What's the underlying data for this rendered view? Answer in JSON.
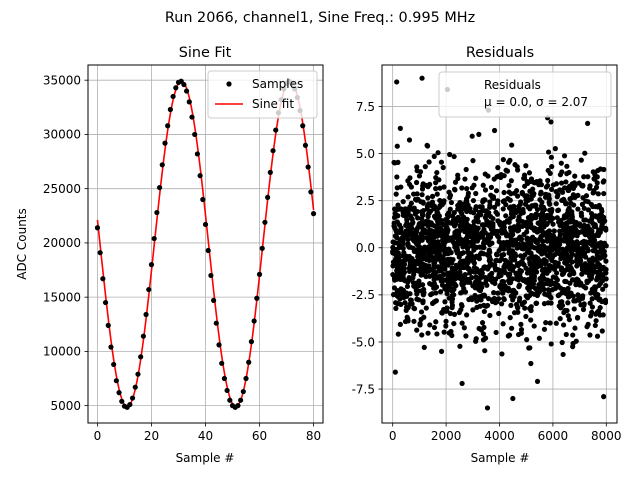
{
  "figure": {
    "suptitle": "Run 2066, channel1, Sine Freq.: 0.995 MHz"
  },
  "chart_data": [
    {
      "type": "scatter+line",
      "title": "Sine Fit",
      "xlabel": "Sample #",
      "ylabel": "ADC Counts",
      "xlim": [
        -3.5,
        83.5
      ],
      "ylim": [
        3400,
        36400
      ],
      "xticks": [
        0,
        20,
        40,
        60,
        80
      ],
      "yticks": [
        5000,
        10000,
        15000,
        20000,
        25000,
        30000,
        35000
      ],
      "grid": true,
      "legend_position": "top-right",
      "legend": [
        "Samples",
        "Sine fit"
      ],
      "fit_model": {
        "amplitude": 15000,
        "offset": 19900,
        "period": 40.2,
        "peak_x": 31.1
      },
      "series": [
        {
          "name": "Samples",
          "kind": "scatter",
          "color": "#000000",
          "x": [
            0,
            1,
            2,
            3,
            4,
            5,
            6,
            7,
            8,
            9,
            10,
            11,
            12,
            13,
            14,
            15,
            16,
            17,
            18,
            19,
            20,
            21,
            22,
            23,
            24,
            25,
            26,
            27,
            28,
            29,
            30,
            31,
            32,
            33,
            34,
            35,
            36,
            37,
            38,
            39,
            40,
            41,
            42,
            43,
            44,
            45,
            46,
            47,
            48,
            49,
            50,
            51,
            52,
            53,
            54,
            55,
            56,
            57,
            58,
            59,
            60,
            61,
            62,
            63,
            64,
            65,
            66,
            67,
            68,
            69,
            70,
            71,
            72,
            73,
            74,
            75,
            76,
            77,
            78,
            79,
            80
          ],
          "y": [
            21400,
            19100,
            16700,
            14500,
            12400,
            10400,
            8800,
            7300,
            6200,
            5400,
            4950,
            4850,
            5100,
            5700,
            6700,
            7900,
            9500,
            11400,
            13400,
            15700,
            18000,
            20400,
            22800,
            25100,
            27200,
            29200,
            30800,
            32300,
            33500,
            34300,
            34800,
            34900,
            34600,
            34000,
            33000,
            31600,
            30000,
            28200,
            26200,
            24000,
            21700,
            19300,
            17000,
            14700,
            12600,
            10600,
            8900,
            7500,
            6400,
            5500,
            5000,
            4850,
            5000,
            5500,
            6300,
            7500,
            9000,
            10900,
            12800,
            14900,
            17100,
            19500,
            21900,
            24200,
            26500,
            28500,
            30400,
            32000,
            33200,
            34200,
            34700,
            34900,
            34700,
            34200,
            33400,
            32200,
            30800,
            29000,
            27000,
            24700,
            22700
          ]
        },
        {
          "name": "Sine fit",
          "kind": "line",
          "color": "#ff0000"
        }
      ]
    },
    {
      "type": "scatter",
      "title": "Residuals",
      "xlabel": "Sample #",
      "ylabel": "",
      "xlim": [
        -400,
        8400
      ],
      "ylim": [
        -9.3,
        9.7
      ],
      "xticks": [
        0,
        2000,
        4000,
        6000,
        8000
      ],
      "yticks": [
        -7.5,
        -5.0,
        -2.5,
        0.0,
        2.5,
        5.0,
        7.5
      ],
      "grid": true,
      "legend_position": "top-right",
      "legend_lines": [
        "Residuals",
        "μ = 0.0, σ = 2.07"
      ],
      "series": [
        {
          "name": "Residuals",
          "kind": "scatter",
          "color": "#000000",
          "count": 8000,
          "mean": 0.0,
          "std": 2.07,
          "notable_points": [
            [
              150,
              8.8
            ],
            [
              2050,
              8.4
            ],
            [
              1100,
              9.0
            ],
            [
              3550,
              -8.5
            ],
            [
              4500,
              -8.0
            ],
            [
              7900,
              -7.9
            ],
            [
              100,
              -6.6
            ],
            [
              2600,
              -7.2
            ],
            [
              5800,
              6.9
            ],
            [
              7300,
              6.6
            ]
          ]
        }
      ]
    }
  ]
}
